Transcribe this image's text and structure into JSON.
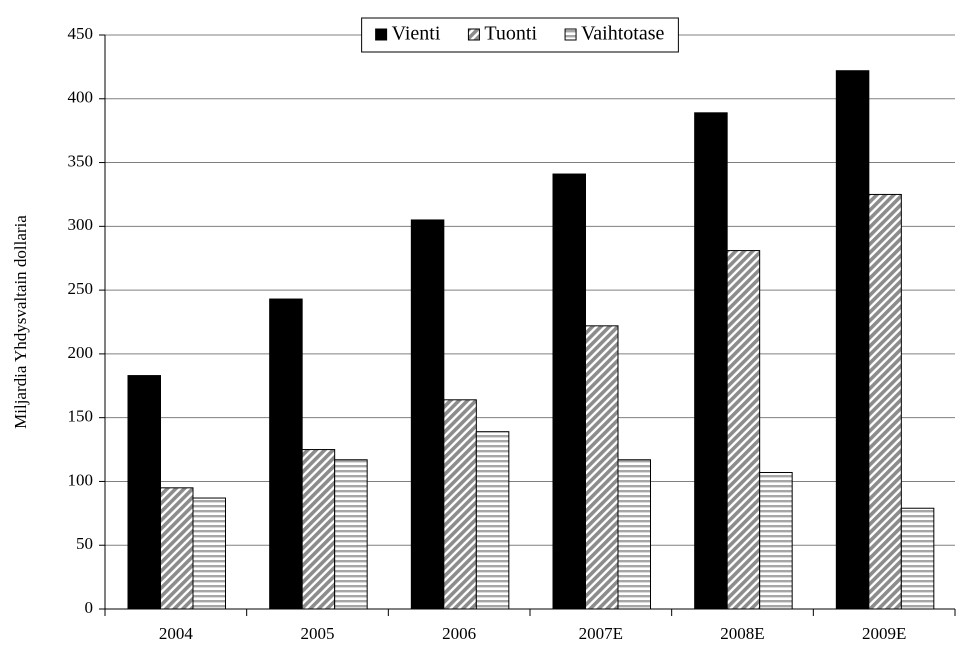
{
  "chart_data": {
    "type": "bar",
    "y_label": "Miljardia Yhdysvaltain dollaria",
    "categories": [
      "2004",
      "2005",
      "2006",
      "2007E",
      "2008E",
      "2009E"
    ],
    "series": [
      {
        "name": "Vienti",
        "color": "#000000",
        "pattern": "solid",
        "values": [
          183,
          243,
          305,
          341,
          389,
          422
        ]
      },
      {
        "name": "Tuonti",
        "color": "#8c8c8c",
        "pattern": "diagonal",
        "values": [
          95,
          125,
          164,
          222,
          281,
          325
        ]
      },
      {
        "name": "Vaihtotase",
        "color": "#a6a6a6",
        "pattern": "horizontal",
        "values": [
          87,
          117,
          139,
          117,
          107,
          79
        ]
      }
    ],
    "ylim": [
      0,
      450
    ],
    "yticks": [
      0,
      50,
      100,
      150,
      200,
      250,
      300,
      350,
      400,
      450
    ],
    "grid": true,
    "legend": "top"
  }
}
